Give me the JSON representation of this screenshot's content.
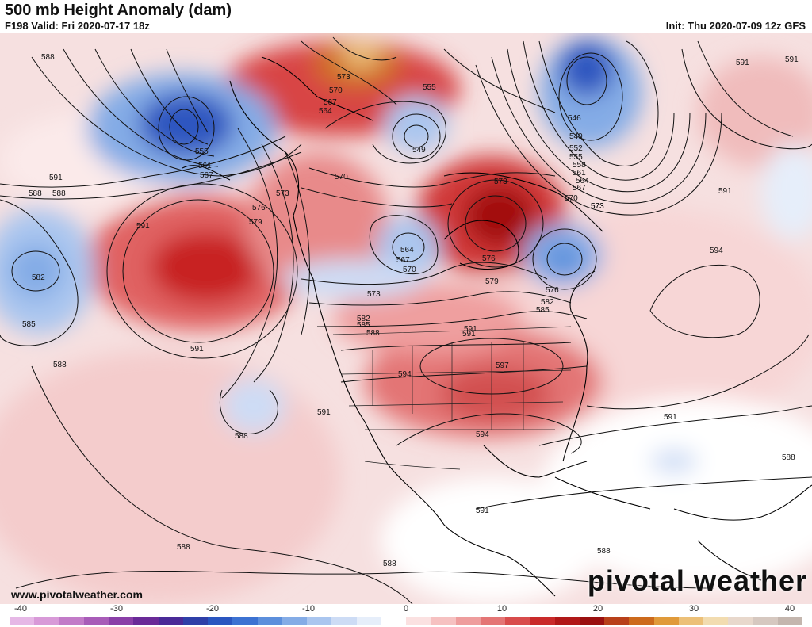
{
  "header": {
    "title": "500 mb Height Anomaly (dam)",
    "valid": "F198 Valid: Fri 2020-07-17 18z",
    "init": "Init: Thu 2020-07-09 12z GFS"
  },
  "footer": {
    "website": "www.pivotalweather.com",
    "brand": "pivotal weather"
  },
  "colorbar": {
    "ticks": [
      "-40",
      "-30",
      "-20",
      "-10",
      "0",
      "10",
      "20",
      "30",
      "40"
    ],
    "colors": [
      "#e6b8e6",
      "#d89ad8",
      "#c27bc8",
      "#a85cb8",
      "#8a3fa8",
      "#6a2a98",
      "#4a2a98",
      "#2f3fa8",
      "#2a56c0",
      "#3c72d2",
      "#5c8fdc",
      "#84ace6",
      "#aac6ef",
      "#cddcf5",
      "#e6eefa",
      "#ffffff",
      "#fbe1e1",
      "#f6c1c1",
      "#ee9d9d",
      "#e47575",
      "#d84c4c",
      "#c92a2a",
      "#b01818",
      "#9a1010",
      "#b8401a",
      "#cc6a1c",
      "#e09a3a",
      "#ecc078",
      "#f2dcb0",
      "#e8d8cc",
      "#d6c8c0",
      "#c4b6ae"
    ]
  },
  "contour_labels": [
    "588",
    "591",
    "561",
    "555",
    "567",
    "573",
    "576",
    "579",
    "591",
    "588",
    "582",
    "585",
    "591",
    "588",
    "588",
    "588",
    "573",
    "570",
    "567",
    "564",
    "549",
    "555",
    "546",
    "549",
    "552",
    "555",
    "558",
    "561",
    "564",
    "567",
    "570",
    "573",
    "591",
    "591",
    "570",
    "573",
    "564",
    "567",
    "570",
    "573",
    "582",
    "585",
    "588",
    "591",
    "594",
    "597",
    "591",
    "594",
    "591",
    "576",
    "579",
    "576",
    "582",
    "585",
    "594",
    "591",
    "591",
    "588",
    "591",
    "588",
    "588",
    "588",
    "573"
  ]
}
